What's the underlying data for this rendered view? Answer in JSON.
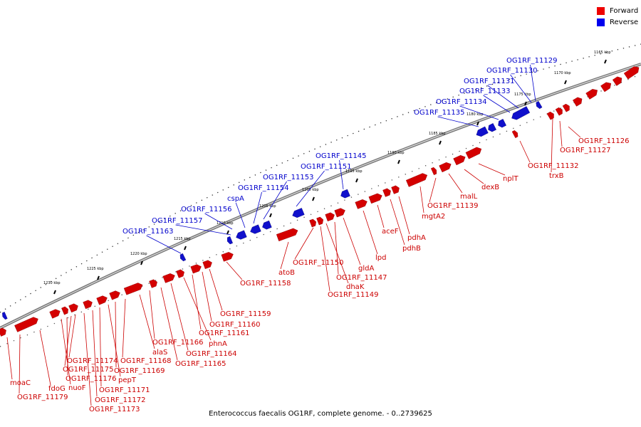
{
  "legend": {
    "forward_label": "Forward",
    "reverse_label": "Reverse",
    "forward_color": "#ee0000",
    "reverse_color": "#0000ee"
  },
  "caption": "Enterococcus faecalis OG1RF, complete genome. - 0..2739625",
  "scale": {
    "ticks": [
      "1165 kbp",
      "1170 kbp",
      "1175 kbp",
      "1180 kbp",
      "1185 kbp",
      "1190 kbp",
      "1195 kbp",
      "1200 kbp",
      "1205 kbp",
      "1210 kbp",
      "1215 kbp",
      "1220 kbp",
      "1225 kbp",
      "1230 kbp"
    ]
  },
  "genes_forward": [
    "OG1RF_11126",
    "OG1RF_11127",
    "trxB",
    "OG1RF_11132",
    "nplT",
    "dexB",
    "malL",
    "OG1RF_11139",
    "mgtA2",
    "pdhA",
    "pdhB",
    "aceF",
    "lpd",
    "gldA",
    "OG1RF_11147",
    "dhaK",
    "OG1RF_11149",
    "OG1RF_11150",
    "atoB",
    "OG1RF_11158",
    "OG1RF_11159",
    "OG1RF_11160",
    "OG1RF_11161",
    "phnA",
    "OG1RF_11164",
    "OG1RF_11165",
    "OG1RF_11166",
    "alaS",
    "OG1RF_11168",
    "OG1RF_11169",
    "pepT",
    "OG1RF_11171",
    "OG1RF_11172",
    "OG1RF_11173",
    "OG1RF_11174",
    "OG1RF_11175",
    "OG1RF_11176",
    "nuoF",
    "fdoG",
    "moaC",
    "OG1RF_11179"
  ],
  "genes_reverse": [
    "OG1RF_11129",
    "OG1RF_11130",
    "OG1RF_11131",
    "OG1RF_11133",
    "OG1RF_11134",
    "OG1RF_11135",
    "OG1RF_11145",
    "OG1RF_11151",
    "OG1RF_11153",
    "OG1RF_11154",
    "cspA",
    "OG1RF_11156",
    "OG1RF_11157",
    "OG1RF_11163"
  ]
}
